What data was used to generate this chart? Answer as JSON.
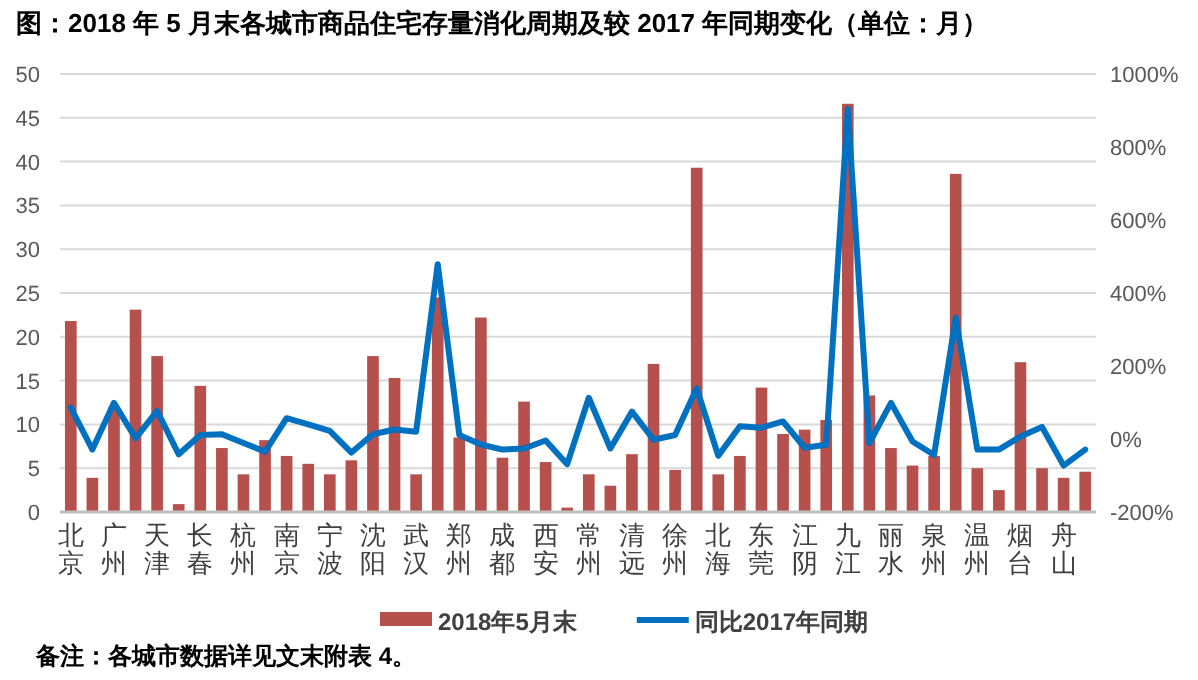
{
  "chart_data": {
    "type": "bar",
    "title": "图：2018 年 5 月末各城市商品住宅存量消化周期及较 2017 年同期变化（单位：月）",
    "categories": [
      "北京",
      null,
      "广州",
      null,
      "天津",
      null,
      "长春",
      null,
      "杭州",
      null,
      "南京",
      null,
      "宁波",
      null,
      "沈阳",
      null,
      "武汉",
      null,
      "郑州",
      null,
      "成都",
      null,
      "西安",
      null,
      "常州",
      null,
      "清远",
      null,
      "徐州",
      null,
      "北海",
      null,
      "东莞",
      null,
      "江阴",
      null,
      "九江",
      null,
      "丽水",
      null,
      "泉州",
      null,
      "温州",
      null,
      "烟台",
      null,
      "舟山",
      null
    ],
    "series": [
      {
        "name": "2018年5月末",
        "color": "#b5504c",
        "values": [
          21.8,
          3.9,
          12,
          23.1,
          17.8,
          0.9,
          14.4,
          7.3,
          4.3,
          8.2,
          6.4,
          5.5,
          4.3,
          5.9,
          17.8,
          15.3,
          4.3,
          24.5,
          8.5,
          22.2,
          6.2,
          12.6,
          5.7,
          0.5,
          4.3,
          3.0,
          6.6,
          16.9,
          4.8,
          39.3,
          4.3,
          6.4,
          14.2,
          8.9,
          9.4,
          10.5,
          46.6,
          13.3,
          7.3,
          5.3,
          6.4,
          38.6,
          5.0,
          2.5,
          17.1,
          5.0,
          3.9,
          4.6
        ]
      },
      {
        "name": "同比2017年同期",
        "type": "line",
        "axis": "y2",
        "color": "#0070c0",
        "values": [
          86,
          -29,
          99,
          2,
          77,
          -42,
          11,
          13,
          -11,
          -35,
          57,
          40,
          22,
          -37,
          13,
          26,
          20,
          479,
          11,
          -15,
          -29,
          -26,
          -4,
          -69,
          113,
          -26,
          75,
          -2,
          11,
          139,
          -46,
          35,
          31,
          48,
          -24,
          -16,
          904,
          -11,
          99,
          -7,
          -44,
          332,
          -29,
          -29,
          7,
          33,
          -73,
          -29
        ]
      }
    ],
    "ylim": [
      0,
      50
    ],
    "yticks": [
      0,
      5,
      10,
      15,
      20,
      25,
      30,
      35,
      40,
      45,
      50
    ],
    "y2lim": [
      -200,
      1000
    ],
    "y2ticks": [
      {
        "value": -200,
        "label": "-200%"
      },
      {
        "value": 0,
        "label": "0%"
      },
      {
        "value": 200,
        "label": "200%"
      },
      {
        "value": 400,
        "label": "400%"
      },
      {
        "value": 600,
        "label": "600%"
      },
      {
        "value": 800,
        "label": "800%"
      },
      {
        "value": 1000,
        "label": "1000%"
      }
    ],
    "grid": "y",
    "legend": "bottom",
    "annotations": [
      "备注：各城市数据详见文末附表 4。"
    ]
  }
}
